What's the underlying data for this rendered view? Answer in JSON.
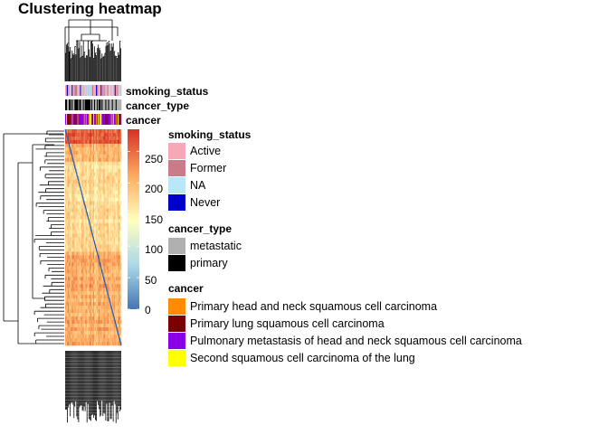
{
  "chart_data": {
    "type": "heatmap",
    "title": "Clustering heatmap",
    "color_scale": {
      "ticks": [
        0,
        50,
        100,
        150,
        200,
        250
      ],
      "stops": [
        {
          "value": 0,
          "color": "#4575b4"
        },
        {
          "value": 70,
          "color": "#abd9e9"
        },
        {
          "value": 140,
          "color": "#ffffbf"
        },
        {
          "value": 210,
          "color": "#fdae61"
        },
        {
          "value": 285,
          "color": "#d73027"
        }
      ]
    },
    "annotation_rows": [
      "smoking_status",
      "cancer_type",
      "cancer"
    ],
    "legends": [
      {
        "title": "smoking_status",
        "items": [
          {
            "label": "Active",
            "color": "#f7a8b8"
          },
          {
            "label": "Former",
            "color": "#c97b8a"
          },
          {
            "label": "NA",
            "color": "#b8e8f8"
          },
          {
            "label": "Never",
            "color": "#0000cd"
          }
        ]
      },
      {
        "title": "cancer_type",
        "items": [
          {
            "label": "metastatic",
            "color": "#b0b0b0"
          },
          {
            "label": "primary",
            "color": "#000000"
          }
        ]
      },
      {
        "title": "cancer",
        "items": [
          {
            "label": "Primary head and neck squamous cell carcinoma",
            "color": "#ff8c00"
          },
          {
            "label": "Primary lung squamous cell carcinoma",
            "color": "#7b0000"
          },
          {
            "label": "Pulmonary metastasis of head and neck squamous cell carcinoma",
            "color": "#8a00e6"
          },
          {
            "label": "Second squamous cell carcinoma of the lung",
            "color": "#ffff00"
          }
        ]
      }
    ]
  }
}
